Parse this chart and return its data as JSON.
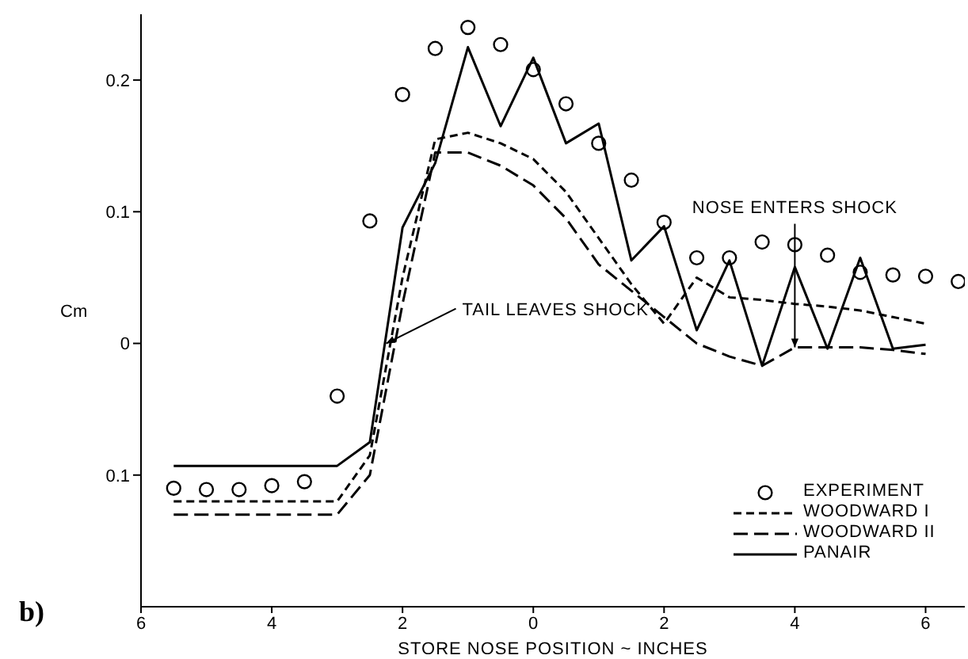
{
  "chart_data": {
    "type": "line",
    "xlabel": "STORE NOSE POSITION ~ INCHES",
    "ylabel": "Cm",
    "xlim": [
      -6,
      6.6
    ],
    "ylim": [
      -0.2,
      0.25
    ],
    "xticks": [
      {
        "value": -6,
        "label": "6"
      },
      {
        "value": -4,
        "label": "4"
      },
      {
        "value": -2,
        "label": "2"
      },
      0,
      2,
      4,
      6
    ],
    "yticks": [
      {
        "value": -0.1,
        "label": "0.1"
      },
      0,
      0.1,
      0.2
    ],
    "grid": false,
    "legend": "bottom right",
    "series": [
      {
        "name": "EXPERIMENT",
        "type": "scatter",
        "marker": "circle",
        "color": "#000000",
        "x": [
          -5.5,
          -5,
          -4.5,
          -4,
          -3.5,
          -3,
          -2.5,
          -2,
          -1.5,
          -1,
          -0.5,
          0,
          0.5,
          1,
          1.5,
          2,
          2.5,
          3,
          3.5,
          4,
          4.5,
          5,
          5.5,
          6,
          6.5
        ],
        "values": [
          -0.11,
          -0.111,
          -0.111,
          -0.108,
          -0.105,
          -0.04,
          0.093,
          0.189,
          0.224,
          0.24,
          0.227,
          0.208,
          0.182,
          0.152,
          0.124,
          0.092,
          0.065,
          0.065,
          0.077,
          0.075,
          0.067,
          0.054,
          0.052,
          0.051,
          0.047
        ]
      },
      {
        "name": "WOODWARD I",
        "type": "line",
        "line_style": "dashed",
        "color": "#000000",
        "x": [
          -5.5,
          -3,
          -2.5,
          -2,
          -1.5,
          -1,
          -0.5,
          0,
          0.5,
          1,
          1.5,
          2,
          2.5,
          3,
          3.5,
          4,
          4.5,
          5,
          5.5,
          6
        ],
        "values": [
          -0.12,
          -0.12,
          -0.085,
          0.05,
          0.155,
          0.16,
          0.152,
          0.14,
          0.115,
          0.08,
          0.045,
          0.015,
          0.05,
          0.035,
          0.033,
          0.03,
          0.028,
          0.025,
          0.02,
          0.015
        ]
      },
      {
        "name": "WOODWARD II",
        "type": "line",
        "line_style": "dashed",
        "color": "#000000",
        "x": [
          -5.5,
          -3,
          -2.5,
          -2,
          -1.5,
          -1,
          -0.5,
          0,
          0.5,
          1,
          1.5,
          2,
          2.5,
          3,
          3.5,
          4,
          4.5,
          5,
          5.5,
          6
        ],
        "values": [
          -0.13,
          -0.13,
          -0.1,
          0.03,
          0.145,
          0.145,
          0.135,
          0.12,
          0.095,
          0.06,
          0.04,
          0.02,
          0.0,
          -0.01,
          -0.017,
          -0.003,
          -0.003,
          -0.003,
          -0.005,
          -0.008
        ]
      },
      {
        "name": "PANAIR",
        "type": "line",
        "line_style": "solid",
        "color": "#000000",
        "x": [
          -5.5,
          -3,
          -2.5,
          -2,
          -1.5,
          -1,
          -0.5,
          0,
          0.5,
          1,
          1.5,
          2,
          2.5,
          3,
          3.5,
          4,
          4.5,
          5,
          5.5,
          6
        ],
        "values": [
          -0.093,
          -0.093,
          -0.075,
          0.088,
          0.137,
          0.225,
          0.165,
          0.217,
          0.152,
          0.167,
          0.063,
          0.089,
          0.01,
          0.063,
          -0.017,
          0.058,
          -0.004,
          0.065,
          -0.004,
          -0.001
        ]
      }
    ],
    "annotations": [
      {
        "text": "TAIL LEAVES SHOCK",
        "x": -2.25,
        "y": 0
      },
      {
        "text": "NOSE ENTERS SHOCK",
        "x": 4,
        "y": -0.003
      },
      "b)"
    ]
  }
}
